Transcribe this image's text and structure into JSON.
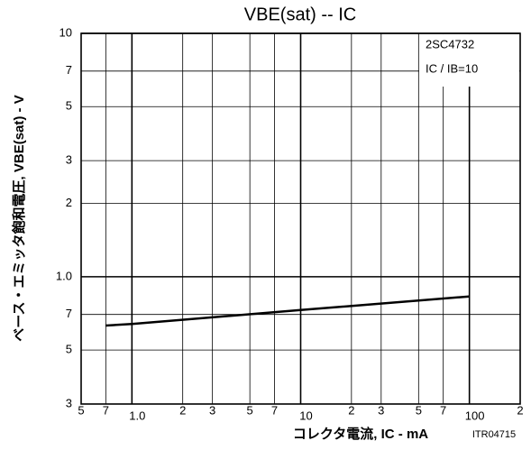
{
  "chart_data": {
    "type": "line",
    "title": "VBE(sat) -- IC",
    "xlabel": "コレクタ電流, IC - mA",
    "ylabel": "ベース・エミッタ飽和電圧, VBE(sat) - V",
    "annotations": [
      "2SC4732",
      "IC / IB=10",
      "ITR04715"
    ],
    "xscale": "log",
    "yscale": "log",
    "grid": true,
    "xlim": [
      0.5,
      200
    ],
    "ylim": [
      0.3,
      10
    ],
    "xticks": [
      {
        "value": 0.5,
        "label": "5"
      },
      {
        "value": 0.7,
        "label": "7"
      },
      {
        "value": 1,
        "label": "1.0"
      },
      2,
      3,
      5,
      7,
      10,
      {
        "value": 20,
        "label": "2"
      },
      {
        "value": 30,
        "label": "3"
      },
      {
        "value": 50,
        "label": "5"
      },
      {
        "value": 70,
        "label": "7"
      },
      100,
      {
        "value": 200,
        "label": "2"
      }
    ],
    "yticks": [
      {
        "value": 0.3,
        "label": "3"
      },
      {
        "value": 0.5,
        "label": "5"
      },
      {
        "value": 0.7,
        "label": "7"
      },
      {
        "value": 1,
        "label": "1.0"
      },
      2,
      3,
      5,
      7,
      10
    ],
    "series": [
      {
        "name": "2SC4732",
        "color": "#000000",
        "x": [
          0.7,
          1,
          10,
          100
        ],
        "values": [
          0.63,
          0.64,
          0.73,
          0.83
        ]
      }
    ]
  }
}
